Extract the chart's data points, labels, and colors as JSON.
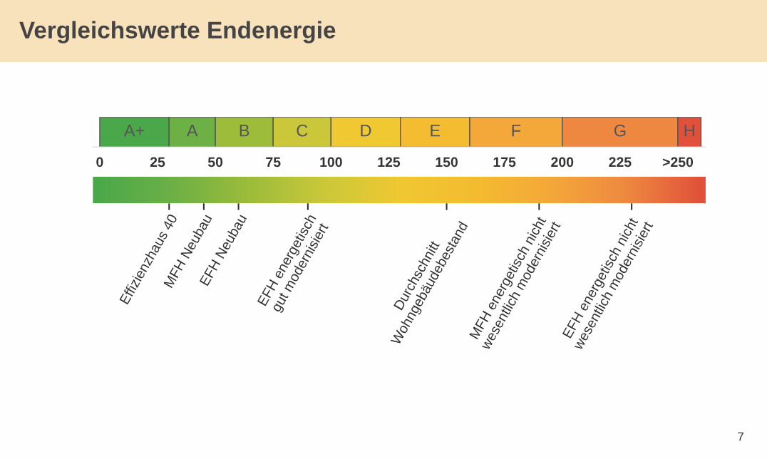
{
  "chart_data": {
    "type": "bar",
    "orientation": "horizontal",
    "stacked": true,
    "title": "Vergleichswerte Endenergie",
    "categories": [
      null
    ],
    "xlim": [
      -3,
      262
    ],
    "xticks": [
      0,
      25,
      50,
      75,
      100,
      125,
      150,
      175,
      200,
      225,
      {
        "value": 250,
        "label": ">250"
      }
    ],
    "series": [
      {
        "name": "A+",
        "color": "#4aa84a",
        "values": [
          30
        ]
      },
      {
        "name": "A",
        "color": "#6cb046",
        "values": [
          20
        ]
      },
      {
        "name": "B",
        "color": "#9cbc3a",
        "values": [
          25
        ]
      },
      {
        "name": "C",
        "color": "#cac83a",
        "values": [
          25
        ]
      },
      {
        "name": "D",
        "color": "#f0c832",
        "values": [
          30
        ]
      },
      {
        "name": "E",
        "color": "#f4bc30",
        "values": [
          30
        ]
      },
      {
        "name": "F",
        "color": "#f4a83a",
        "values": [
          40
        ]
      },
      {
        "name": "G",
        "color": "#ee8840",
        "values": [
          50
        ]
      },
      {
        "name": "H",
        "color": "#e0503a",
        "values": [
          10
        ]
      }
    ],
    "ref_lines": [
      {
        "axis": "x",
        "value": 30,
        "label": "Effizienzhaus 40",
        "color": "#333333"
      },
      {
        "axis": "x",
        "value": 45,
        "label": "MFH Neubau",
        "color": "#333333"
      },
      {
        "axis": "x",
        "value": 60,
        "label": "EFH Neubau",
        "color": "#333333"
      },
      {
        "axis": "x",
        "value": 90,
        "label": "EFH energetisch\ngut modernisiert",
        "color": "#333333"
      },
      {
        "axis": "x",
        "value": 150,
        "label": "Durchschnitt\nWohngebäudebestand",
        "color": "#333333"
      },
      {
        "axis": "x",
        "value": 190,
        "label": "MFH energetisch nicht\nwesentlich modernisiert",
        "color": "#333333"
      },
      {
        "axis": "x",
        "value": 230,
        "label": "EFH energetisch nicht\nwesentlich modernisiert",
        "color": "#333333"
      }
    ],
    "annotations": [
      "7"
    ]
  }
}
